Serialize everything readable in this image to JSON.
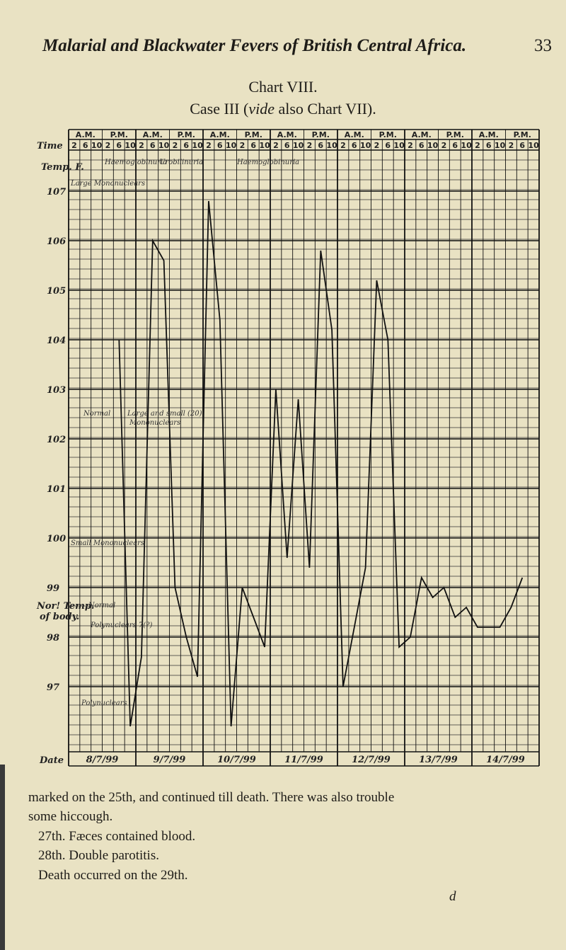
{
  "header": {
    "title": "Malarial and Blackwater Fevers of British Central Africa.",
    "page": "33"
  },
  "caption": {
    "title": "Chart VIII.",
    "subtitle_before": "Case III (",
    "subtitle_italic": "vide",
    "subtitle_after": " also Chart VII)."
  },
  "chart": {
    "time_label": "Time",
    "temp_label": "Temp. F.",
    "date_label": "Date",
    "normal_label": "Nor! Temp.",
    "normal_label_2": "of body.",
    "am": "A.M.",
    "pm": "P.M.",
    "times": [
      "2",
      "6",
      "10",
      "2",
      "6",
      "10"
    ],
    "yticks": [
      107,
      106,
      105,
      104,
      103,
      102,
      101,
      100,
      99,
      98,
      97
    ],
    "dates": [
      "8/7/99",
      "9/7/99",
      "10/7/99",
      "11/7/99",
      "12/7/99",
      "13/7/99",
      "14/7/99"
    ],
    "temperatures": [
      null,
      null,
      null,
      null,
      104.0,
      96.2,
      97.6,
      106.0,
      105.6,
      99.0,
      98.0,
      97.2,
      106.8,
      104.4,
      96.2,
      99.0,
      98.4,
      97.8,
      103.0,
      99.6,
      102.8,
      99.4,
      105.8,
      104.2,
      97.0,
      98.2,
      99.4,
      105.2,
      104.0,
      97.8,
      98.0,
      99.2,
      98.8,
      99.0,
      98.4,
      98.6,
      98.2,
      98.2,
      98.2,
      98.6,
      99.2,
      null
    ],
    "annotations": [
      "Haemoglobinuria",
      "Urobilinuria",
      "Haemoglobinuria",
      "Large Mononuclears",
      "Normal",
      "Large and small (20)",
      "Mononuclears",
      "Small Mononuclears",
      "Normal",
      "Polynuclears 7(?)",
      "Polynuclears"
    ]
  },
  "body": {
    "lines": [
      "marked on the 25th, and continued till death. There was also trouble",
      "some hiccough.",
      "27th. Fæces contained blood.",
      "28th. Double parotitis.",
      "Death occurred on the 29th."
    ],
    "signature": "d"
  }
}
